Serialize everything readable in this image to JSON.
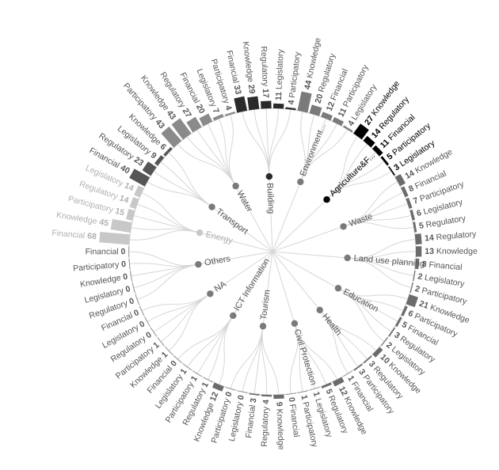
{
  "chart_data": {
    "type": "radial-bar",
    "center_labels": true,
    "sectors": [
      {
        "name": "Agriculture&F...",
        "color": "#000000",
        "items": [
          {
            "label": "Knowledge",
            "value": 27
          },
          {
            "label": "Regulatory",
            "value": 14
          },
          {
            "label": "Financial",
            "value": 11
          },
          {
            "label": "Participatory",
            "value": 5
          },
          {
            "label": "Legislatory",
            "value": 3
          }
        ]
      },
      {
        "name": "Waste",
        "color": "#6b6b6b",
        "items": [
          {
            "label": "Knowledge",
            "value": 14
          },
          {
            "label": "Financial",
            "value": 8
          },
          {
            "label": "Participatory",
            "value": 7
          },
          {
            "label": "Legislatory",
            "value": 6
          },
          {
            "label": "Regulatory",
            "value": 5
          }
        ]
      },
      {
        "name": "Land use planning",
        "color": "#6b6b6b",
        "items": [
          {
            "label": "Regulatory",
            "value": 14
          },
          {
            "label": "Knowledge",
            "value": 13
          },
          {
            "label": "Financial",
            "value": 8
          },
          {
            "label": "Legislatory",
            "value": 2
          },
          {
            "label": "Participatory",
            "value": 2
          }
        ]
      },
      {
        "name": "Education",
        "color": "#6b6b6b",
        "items": [
          {
            "label": "Knowledge",
            "value": 21
          },
          {
            "label": "Participatory",
            "value": 6
          },
          {
            "label": "Financial",
            "value": 5
          },
          {
            "label": "Regulatory",
            "value": 3
          },
          {
            "label": "Legislatory",
            "value": 2
          }
        ]
      },
      {
        "name": "Health",
        "color": "#6b6b6b",
        "items": [
          {
            "label": "Knowledge",
            "value": 10
          },
          {
            "label": "Regulatory",
            "value": 3
          },
          {
            "label": "Participatory",
            "value": 3
          },
          {
            "label": "Financial",
            "value": 1
          }
        ]
      },
      {
        "name": "Civil Protection",
        "color": "#6b6b6b",
        "items": [
          {
            "label": "Knowledge",
            "value": 12
          },
          {
            "label": "Regulatory",
            "value": 5
          },
          {
            "label": "Legislatory",
            "value": 1
          },
          {
            "label": "Participatory",
            "value": 1
          },
          {
            "label": "Financial",
            "value": 0
          }
        ]
      },
      {
        "name": "Tourism",
        "color": "#6b6b6b",
        "items": [
          {
            "label": "Knowledge",
            "value": 9
          },
          {
            "label": "Regulatory",
            "value": 4
          },
          {
            "label": "Financial",
            "value": 3
          },
          {
            "label": "Legislatory",
            "value": 0
          },
          {
            "label": "Participatory",
            "value": 0
          }
        ]
      },
      {
        "name": "ICT Information",
        "color": "#6b6b6b",
        "items": [
          {
            "label": "Knowledge",
            "value": 12
          },
          {
            "label": "Regulatory",
            "value": 1
          },
          {
            "label": "Participatory",
            "value": 1
          },
          {
            "label": "Legislatory",
            "value": 1
          },
          {
            "label": "Financial",
            "value": 0
          }
        ]
      },
      {
        "name": "NA",
        "color": "#6b6b6b",
        "items": [
          {
            "label": "Knowledge",
            "value": 1
          },
          {
            "label": "Participatory",
            "value": 1
          },
          {
            "label": "Regulatory",
            "value": 0
          },
          {
            "label": "Legislatory",
            "value": 0
          },
          {
            "label": "Financial",
            "value": 0
          }
        ]
      },
      {
        "name": "Others",
        "color": "#6b6b6b",
        "items": [
          {
            "label": "Regulatory",
            "value": 0
          },
          {
            "label": "Legislatory",
            "value": 0
          },
          {
            "label": "Knowledge",
            "value": 0
          },
          {
            "label": "Participatory",
            "value": 0
          },
          {
            "label": "Financial",
            "value": 0
          }
        ]
      },
      {
        "name": "Energy",
        "color": "#c8c8c8",
        "items": [
          {
            "label": "Financial",
            "value": 68
          },
          {
            "label": "Knowledge",
            "value": 45
          },
          {
            "label": "Participatory",
            "value": 15
          },
          {
            "label": "Regulatory",
            "value": 14
          },
          {
            "label": "Legislatory",
            "value": 14
          }
        ]
      },
      {
        "name": "Transport",
        "color": "#555555",
        "items": [
          {
            "label": "Financial",
            "value": 40
          },
          {
            "label": "Regulatory",
            "value": 23
          },
          {
            "label": "Legislatory",
            "value": 9
          },
          {
            "label": "Knowledge",
            "value": 6
          }
        ]
      },
      {
        "name": "Water",
        "color": "#8a8a8a",
        "items": [
          {
            "label": "Participatory",
            "value": 43
          },
          {
            "label": "Knowledge",
            "value": 43
          },
          {
            "label": "Regulatory",
            "value": 27
          },
          {
            "label": "Financial",
            "value": 20
          },
          {
            "label": "Legislatory",
            "value": 7
          },
          {
            "label": "Participatory",
            "value": 4
          }
        ]
      },
      {
        "name": "Building",
        "color": "#2a2a2a",
        "items": [
          {
            "label": "Financial",
            "value": 33
          },
          {
            "label": "Knowledge",
            "value": 29
          },
          {
            "label": "Regulatory",
            "value": 17
          },
          {
            "label": "Legislatory",
            "value": 11
          },
          {
            "label": "Participatory",
            "value": 4
          }
        ]
      },
      {
        "name": "Environment...",
        "color": "#7a7a7a",
        "items": [
          {
            "label": "Knowledge",
            "value": 44
          },
          {
            "label": "Regulatory",
            "value": 20
          },
          {
            "label": "Financial",
            "value": 12
          },
          {
            "label": "Participatory",
            "value": 11
          },
          {
            "label": "Legislatory",
            "value": 4
          }
        ]
      }
    ]
  }
}
